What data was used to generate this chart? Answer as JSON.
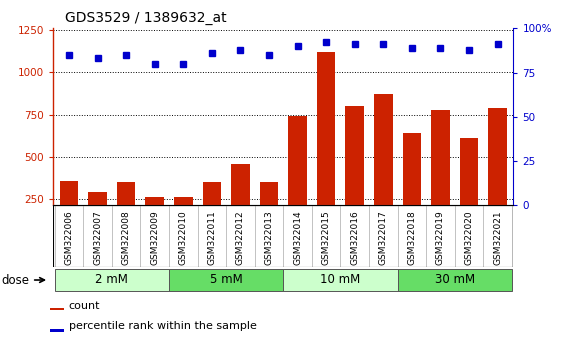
{
  "title": "GDS3529 / 1389632_at",
  "samples": [
    "GSM322006",
    "GSM322007",
    "GSM322008",
    "GSM322009",
    "GSM322010",
    "GSM322011",
    "GSM322012",
    "GSM322013",
    "GSM322014",
    "GSM322015",
    "GSM322016",
    "GSM322017",
    "GSM322018",
    "GSM322019",
    "GSM322020",
    "GSM322021"
  ],
  "counts": [
    360,
    295,
    355,
    265,
    265,
    355,
    460,
    355,
    745,
    1120,
    800,
    870,
    640,
    775,
    615,
    790
  ],
  "percentiles": [
    85,
    83,
    85,
    80,
    80,
    86,
    88,
    85,
    90,
    92,
    91,
    91,
    89,
    89,
    88,
    91
  ],
  "bar_color": "#cc2200",
  "dot_color": "#0000cc",
  "bg_color": "#ffffff",
  "plot_bg": "#ffffff",
  "xlabels_bg": "#cccccc",
  "left_yticks": [
    250,
    500,
    750,
    1000,
    1250
  ],
  "right_yticks": [
    0,
    25,
    50,
    75,
    100
  ],
  "ylim_left": [
    215,
    1260
  ],
  "ylim_right": [
    0,
    100
  ],
  "dose_groups": [
    {
      "label": "2 mM",
      "start": 0,
      "end": 4,
      "color": "#ccffcc"
    },
    {
      "label": "5 mM",
      "start": 4,
      "end": 8,
      "color": "#66dd66"
    },
    {
      "label": "10 mM",
      "start": 8,
      "end": 12,
      "color": "#ccffcc"
    },
    {
      "label": "30 mM",
      "start": 12,
      "end": 16,
      "color": "#66dd66"
    }
  ],
  "legend_count_label": "count",
  "legend_pct_label": "percentile rank within the sample",
  "dose_label": "dose",
  "title_fontsize": 10,
  "tick_fontsize": 7.5,
  "sample_fontsize": 6.5
}
